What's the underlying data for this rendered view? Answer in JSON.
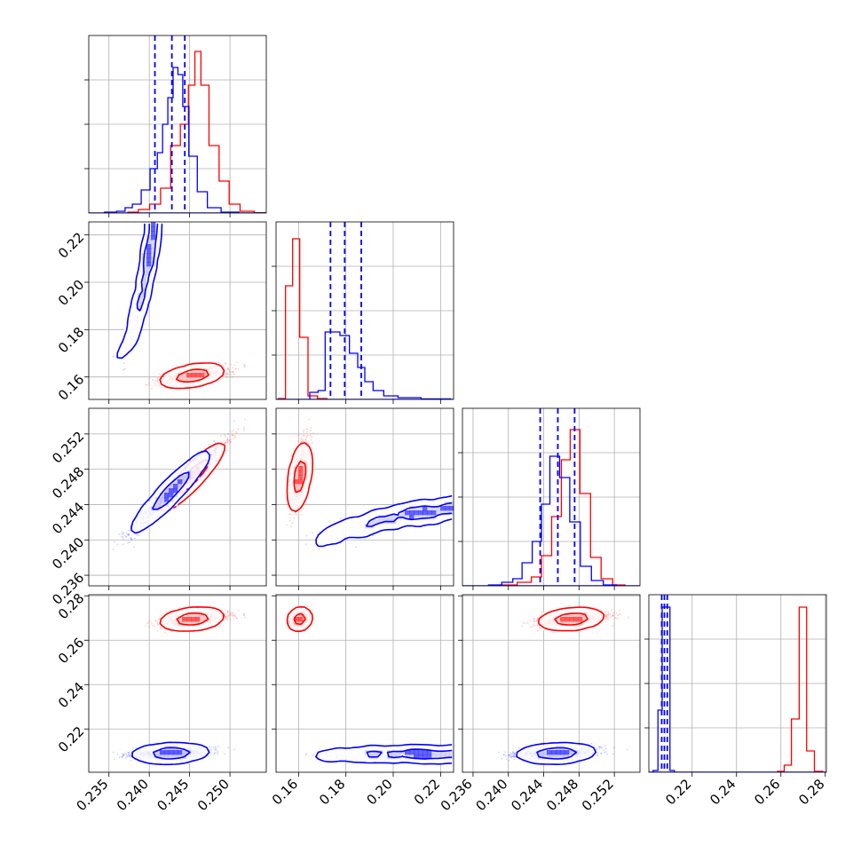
{
  "chart_data": {
    "type": "corner",
    "colors": {
      "series_a": "#0000ff",
      "series_b": "#ff0000"
    },
    "params": [
      {
        "range": [
          0.2325,
          0.2545
        ],
        "ticks": [
          0.235,
          0.24,
          0.245,
          0.25
        ],
        "tick_labels": [
          "0.235",
          "0.240",
          "0.245",
          "0.250"
        ]
      },
      {
        "range": [
          0.1505,
          0.2255
        ],
        "ticks": [
          0.16,
          0.18,
          0.2,
          0.22
        ],
        "tick_labels": [
          "0.16",
          "0.18",
          "0.20",
          "0.22"
        ]
      },
      {
        "range": [
          0.2348,
          0.2549
        ],
        "ticks": [
          0.236,
          0.24,
          0.244,
          0.248,
          0.252
        ],
        "tick_labels": [
          "0.236",
          "0.240",
          "0.244",
          "0.248",
          "0.252"
        ]
      },
      {
        "range": [
          0.2005,
          0.2805
        ],
        "ticks": [
          0.22,
          0.24,
          0.26,
          0.28
        ],
        "tick_labels": [
          "0.22",
          "0.24",
          "0.26",
          "0.28"
        ]
      }
    ],
    "marginals": [
      {
        "quantiles_series_a": [
          0.2407,
          0.2428,
          0.2444
        ],
        "series_a": [
          [
            0.2352,
            0.005
          ],
          [
            0.2367,
            0.01
          ],
          [
            0.2373,
            0.03
          ],
          [
            0.2385,
            0.05
          ],
          [
            0.2395,
            0.13
          ],
          [
            0.2407,
            0.25
          ],
          [
            0.2413,
            0.34
          ],
          [
            0.242,
            0.5
          ],
          [
            0.2426,
            0.65
          ],
          [
            0.2433,
            0.82
          ],
          [
            0.2438,
            0.78
          ],
          [
            0.2445,
            0.6
          ],
          [
            0.2453,
            0.32
          ],
          [
            0.2466,
            0.12
          ],
          [
            0.2478,
            0.03
          ],
          [
            0.25,
            0.005
          ]
        ],
        "series_b": [
          [
            0.238,
            0.005
          ],
          [
            0.2393,
            0.02
          ],
          [
            0.2408,
            0.05
          ],
          [
            0.242,
            0.14
          ],
          [
            0.2433,
            0.38
          ],
          [
            0.2444,
            0.5
          ],
          [
            0.2453,
            0.72
          ],
          [
            0.246,
            0.91
          ],
          [
            0.2468,
            0.72
          ],
          [
            0.248,
            0.38
          ],
          [
            0.2493,
            0.18
          ],
          [
            0.2505,
            0.05
          ],
          [
            0.252,
            0.01
          ],
          [
            0.254,
            0.002
          ]
        ]
      },
      {
        "quantiles_series_a": [
          0.1735,
          0.1795,
          0.1865
        ],
        "series_a": [
          [
            0.1665,
            0.04
          ],
          [
            0.17,
            0.05
          ],
          [
            0.1725,
            0.38
          ],
          [
            0.1755,
            0.38
          ],
          [
            0.1795,
            0.36
          ],
          [
            0.1835,
            0.26
          ],
          [
            0.1865,
            0.18
          ],
          [
            0.1895,
            0.1
          ],
          [
            0.1935,
            0.05
          ],
          [
            0.1985,
            0.02
          ],
          [
            0.2055,
            0.01
          ],
          [
            0.218,
            0.003
          ]
        ],
        "series_b": [
          [
            0.153,
            0.005
          ],
          [
            0.156,
            0.64
          ],
          [
            0.159,
            0.905
          ],
          [
            0.162,
            0.35
          ],
          [
            0.166,
            0.02
          ],
          [
            0.17,
            0.005
          ]
        ]
      },
      {
        "quantiles_series_a": [
          0.2436,
          0.2456,
          0.2475
        ],
        "series_a": [
          [
            0.2385,
            0.005
          ],
          [
            0.24,
            0.02
          ],
          [
            0.241,
            0.04
          ],
          [
            0.2421,
            0.13
          ],
          [
            0.2433,
            0.25
          ],
          [
            0.2442,
            0.46
          ],
          [
            0.2452,
            0.73
          ],
          [
            0.2464,
            0.61
          ],
          [
            0.2475,
            0.36
          ],
          [
            0.2488,
            0.11
          ],
          [
            0.25,
            0.03
          ],
          [
            0.2515,
            0.005
          ]
        ],
        "series_b": [
          [
            0.24,
            0.005
          ],
          [
            0.242,
            0.02
          ],
          [
            0.2432,
            0.05
          ],
          [
            0.2443,
            0.17
          ],
          [
            0.2455,
            0.39
          ],
          [
            0.2465,
            0.71
          ],
          [
            0.2475,
            0.88
          ],
          [
            0.2487,
            0.52
          ],
          [
            0.2499,
            0.16
          ],
          [
            0.2511,
            0.04
          ],
          [
            0.2525,
            0.005
          ]
        ]
      },
      {
        "quantiles_series_a": [
          0.2063,
          0.2075,
          0.2088
        ],
        "series_a": [
          [
            0.2035,
            0.01
          ],
          [
            0.2057,
            0.35
          ],
          [
            0.2073,
            0.93
          ],
          [
            0.209,
            0.93
          ],
          [
            0.211,
            0.01
          ]
        ],
        "series_b": [
          [
            0.26,
            0.005
          ],
          [
            0.263,
            0.04
          ],
          [
            0.2665,
            0.3
          ],
          [
            0.27,
            0.93
          ],
          [
            0.2732,
            0.12
          ],
          [
            0.277,
            0.005
          ]
        ]
      }
    ],
    "scatter": {
      "series_a": {
        "p0": {
          "mean": 0.2427,
          "sd": 0.0024
        },
        "p1": {
          "mean": 0.1785,
          "sd": 0.0075,
          "base": 0.1695,
          "dep_p0": 0.0,
          "curve": 2600
        },
        "p2": {
          "mean": 0.2455,
          "sd": 0.0023,
          "corr_p0": 0.97
        },
        "p3": {
          "mean": 0.209,
          "sd": 0.0012,
          "corr_p0": 0.3
        }
      },
      "series_b": {
        "p0": {
          "mean": 0.2454,
          "sd": 0.002
        },
        "p1": {
          "mean": 0.1605,
          "sd": 0.0018,
          "corr_p0": 0.65
        },
        "p2": {
          "mean": 0.2472,
          "sd": 0.0019,
          "corr_p0": 0.96
        },
        "p3": {
          "mean": 0.2695,
          "sd": 0.0017,
          "corr_p0": 0.45
        }
      }
    },
    "grid": true,
    "legend": false
  }
}
